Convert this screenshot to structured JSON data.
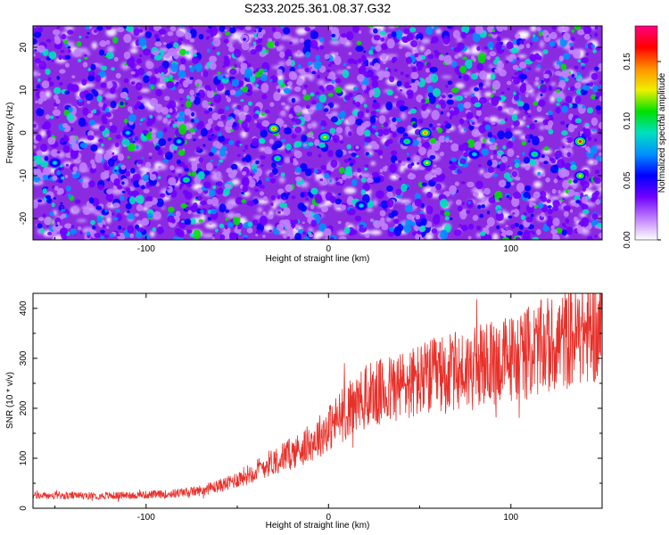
{
  "title": "S233.2025.361.08.37.G32",
  "chart_data": [
    {
      "type": "heatmap",
      "name": "spectrogram",
      "title": "S233.2025.361.08.37.G32",
      "xlabel": "Height of straight line (km)",
      "ylabel": "Frequency (Hz)",
      "xlim": [
        -162,
        150
      ],
      "ylim": [
        -25,
        25
      ],
      "xticks": [
        -100,
        0,
        100
      ],
      "xtick_labels": [
        "-100",
        "0",
        "100"
      ],
      "yticks": [
        -20,
        -10,
        0,
        10,
        20
      ],
      "ytick_labels": [
        "-20",
        "-10",
        "0",
        "10",
        "20"
      ],
      "colorbar": {
        "label": "Normalized spectral amplitude",
        "range": [
          0,
          0.18
        ],
        "ticks": [
          0,
          0.05,
          0.1,
          0.15
        ],
        "tick_labels": [
          "0.00",
          "0.05",
          "0.10",
          "0.15"
        ],
        "colors": [
          "#ffffff",
          "#c080ff",
          "#7000ff",
          "#0000ff",
          "#0090ff",
          "#00e0c0",
          "#00e000",
          "#f0f000",
          "#ff9000",
          "#ff0000",
          "#ff0080"
        ]
      },
      "hotspots": [
        {
          "x": -2,
          "y": -1,
          "amp": 0.13
        },
        {
          "x": 53,
          "y": 0,
          "amp": 0.15
        },
        {
          "x": 54,
          "y": -7,
          "amp": 0.12
        },
        {
          "x": 138,
          "y": -2,
          "amp": 0.16
        },
        {
          "x": -30,
          "y": 1,
          "amp": 0.15
        },
        {
          "x": -28,
          "y": -6,
          "amp": 0.11
        },
        {
          "x": 43,
          "y": -2,
          "amp": 0.11
        },
        {
          "x": 138,
          "y": -10,
          "amp": 0.12
        },
        {
          "x": 113,
          "y": -5,
          "amp": 0.1
        },
        {
          "x": -78,
          "y": -11,
          "amp": 0.1
        },
        {
          "x": -82,
          "y": -2,
          "amp": 0.09
        },
        {
          "x": -110,
          "y": 0,
          "amp": 0.09
        },
        {
          "x": -150,
          "y": -7,
          "amp": 0.09
        },
        {
          "x": 80,
          "y": -5,
          "amp": 0.09
        },
        {
          "x": 18,
          "y": -17,
          "amp": 0.09
        }
      ]
    },
    {
      "type": "line",
      "name": "snr",
      "xlabel": "Height of straight line (km)",
      "ylabel": "SNR (10 * v/v)",
      "xlim": [
        -162,
        150
      ],
      "ylim": [
        0,
        430
      ],
      "xticks": [
        -100,
        0,
        100
      ],
      "xtick_labels": [
        "-100",
        "0",
        "100"
      ],
      "yticks": [
        0,
        100,
        200,
        300,
        400
      ],
      "ytick_labels": [
        "0",
        "100",
        "200",
        "300",
        "400"
      ],
      "color": "#e8302a",
      "trend": [
        {
          "x": -162,
          "y": 25
        },
        {
          "x": -120,
          "y": 25
        },
        {
          "x": -90,
          "y": 28
        },
        {
          "x": -70,
          "y": 35
        },
        {
          "x": -55,
          "y": 50
        },
        {
          "x": -40,
          "y": 75
        },
        {
          "x": -30,
          "y": 95
        },
        {
          "x": -20,
          "y": 110
        },
        {
          "x": -10,
          "y": 130
        },
        {
          "x": 0,
          "y": 160
        },
        {
          "x": 10,
          "y": 195
        },
        {
          "x": 20,
          "y": 220
        },
        {
          "x": 40,
          "y": 245
        },
        {
          "x": 60,
          "y": 265
        },
        {
          "x": 80,
          "y": 280
        },
        {
          "x": 100,
          "y": 300
        },
        {
          "x": 120,
          "y": 325
        },
        {
          "x": 140,
          "y": 350
        },
        {
          "x": 150,
          "y": 355
        }
      ],
      "noise_amplitude_fraction": 0.3,
      "sample_count": 1600
    }
  ]
}
